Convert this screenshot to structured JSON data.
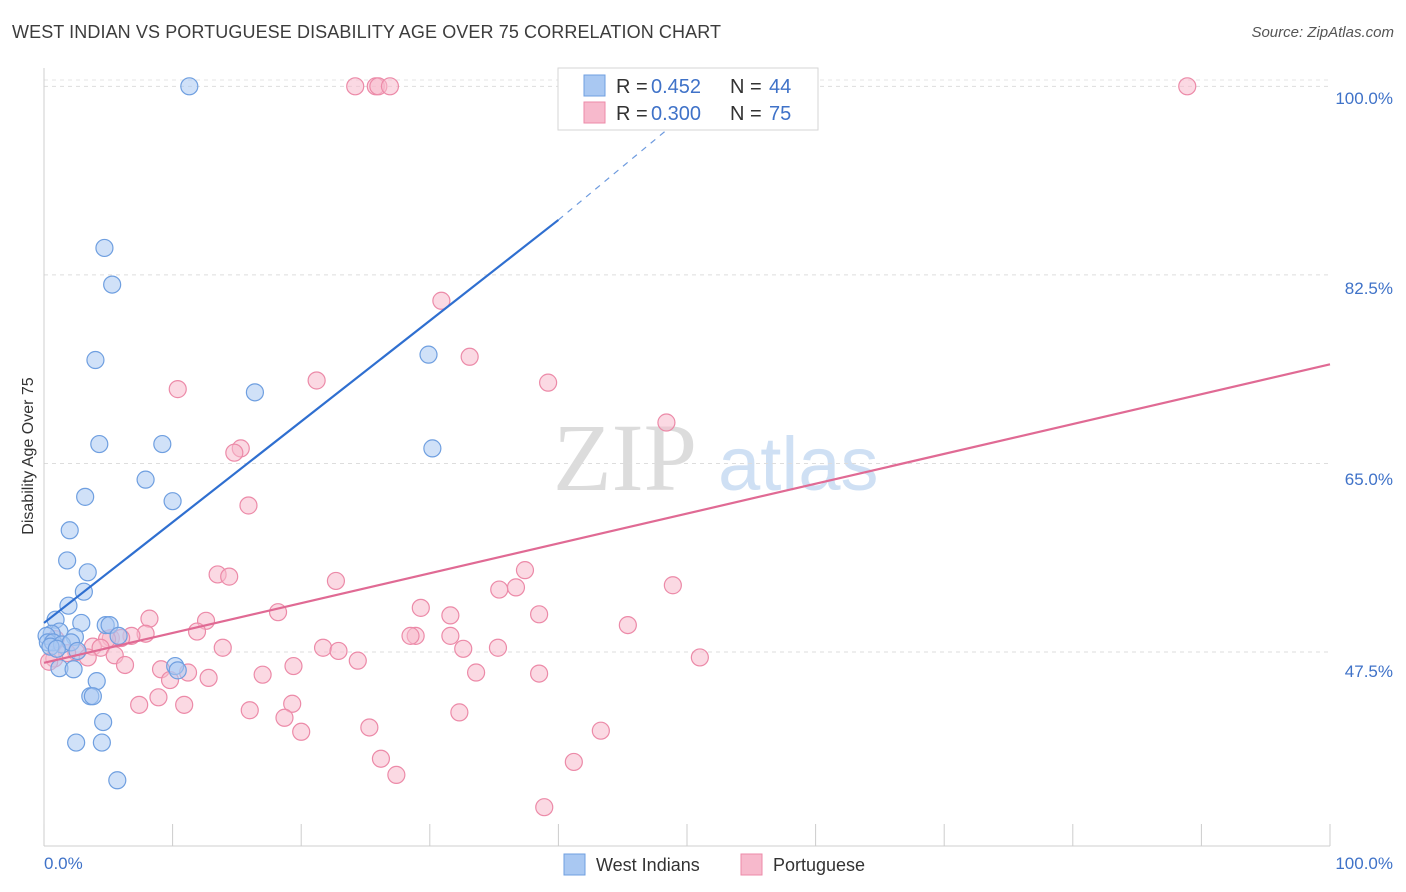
{
  "header": {
    "title": "WEST INDIAN VS PORTUGUESE DISABILITY AGE OVER 75 CORRELATION CHART",
    "source": "Source: ZipAtlas.com"
  },
  "watermark": {
    "zip": "ZIP",
    "atlas": "atlas"
  },
  "legend": {
    "r_label": "R =",
    "n_label": "N =",
    "entries": [
      {
        "r": "0.452",
        "n": "44"
      },
      {
        "r": "0.300",
        "n": "75"
      }
    ]
  },
  "colors": {
    "west_indians_fill": "#a9c8f2",
    "west_indians_stroke": "#6f9fe0",
    "west_indians_line": "#2f6fd0",
    "portuguese_fill": "#f7b9cc",
    "portuguese_stroke": "#ec8aa8",
    "portuguese_line": "#e06a94",
    "value_text": "#3f72c8"
  },
  "chart_data": {
    "type": "scatter",
    "title": "WEST INDIAN VS PORTUGUESE DISABILITY AGE OVER 75 CORRELATION CHART",
    "xlabel": "",
    "ylabel": "Disability Age Over 75",
    "xlim": [
      0,
      100
    ],
    "ylim": [
      29.5,
      101.7
    ],
    "x_tick_labels": [
      "0.0%",
      "100.0%"
    ],
    "y_ticks": [
      47.5,
      65.0,
      82.5,
      100.0
    ],
    "y_tick_labels": [
      "47.5%",
      "65.0%",
      "82.5%",
      "100.0%"
    ],
    "grid": true,
    "legend_position": "top-center",
    "series": [
      {
        "name": "West Indians",
        "r": 0.452,
        "n": 44,
        "trend": {
          "x": [
            0,
            40,
            52
          ],
          "y": [
            50.2,
            87.6,
            99.5
          ]
        },
        "points": [
          {
            "x": 11.3,
            "y": 100.0
          },
          {
            "x": 4.7,
            "y": 85.0
          },
          {
            "x": 5.3,
            "y": 81.6
          },
          {
            "x": 4.0,
            "y": 74.6
          },
          {
            "x": 16.4,
            "y": 71.6
          },
          {
            "x": 29.9,
            "y": 75.1
          },
          {
            "x": 4.3,
            "y": 66.8
          },
          {
            "x": 9.2,
            "y": 66.8
          },
          {
            "x": 30.2,
            "y": 66.4
          },
          {
            "x": 7.9,
            "y": 63.5
          },
          {
            "x": 3.2,
            "y": 61.9
          },
          {
            "x": 10.0,
            "y": 61.5
          },
          {
            "x": 2.0,
            "y": 58.8
          },
          {
            "x": 1.8,
            "y": 56.0
          },
          {
            "x": 3.4,
            "y": 54.9
          },
          {
            "x": 3.1,
            "y": 53.1
          },
          {
            "x": 1.9,
            "y": 51.8
          },
          {
            "x": 0.9,
            "y": 50.5
          },
          {
            "x": 2.9,
            "y": 50.2
          },
          {
            "x": 4.8,
            "y": 50.0
          },
          {
            "x": 5.1,
            "y": 50.0
          },
          {
            "x": 1.2,
            "y": 49.4
          },
          {
            "x": 0.6,
            "y": 49.2
          },
          {
            "x": 0.2,
            "y": 49.0
          },
          {
            "x": 2.4,
            "y": 48.9
          },
          {
            "x": 5.8,
            "y": 49.0
          },
          {
            "x": 0.3,
            "y": 48.4
          },
          {
            "x": 0.7,
            "y": 48.4
          },
          {
            "x": 1.4,
            "y": 48.2
          },
          {
            "x": 2.1,
            "y": 48.4
          },
          {
            "x": 0.5,
            "y": 48.0
          },
          {
            "x": 1.0,
            "y": 47.8
          },
          {
            "x": 2.6,
            "y": 47.6
          },
          {
            "x": 10.2,
            "y": 46.2
          },
          {
            "x": 10.4,
            "y": 45.8
          },
          {
            "x": 1.2,
            "y": 46.0
          },
          {
            "x": 2.3,
            "y": 45.9
          },
          {
            "x": 4.1,
            "y": 44.8
          },
          {
            "x": 3.6,
            "y": 43.4
          },
          {
            "x": 3.8,
            "y": 43.4
          },
          {
            "x": 4.6,
            "y": 41.0
          },
          {
            "x": 2.5,
            "y": 39.1
          },
          {
            "x": 4.5,
            "y": 39.1
          },
          {
            "x": 5.7,
            "y": 35.6
          }
        ]
      },
      {
        "name": "Portuguese",
        "r": 0.3,
        "n": 75,
        "trend": {
          "x": [
            0,
            100
          ],
          "y": [
            46.5,
            74.2
          ]
        },
        "points": [
          {
            "x": 24.2,
            "y": 100.0
          },
          {
            "x": 25.8,
            "y": 100.0
          },
          {
            "x": 26.0,
            "y": 100.0
          },
          {
            "x": 26.9,
            "y": 100.0
          },
          {
            "x": 88.9,
            "y": 100.0
          },
          {
            "x": 30.9,
            "y": 80.1
          },
          {
            "x": 33.1,
            "y": 74.9
          },
          {
            "x": 21.2,
            "y": 72.7
          },
          {
            "x": 39.2,
            "y": 72.5
          },
          {
            "x": 10.4,
            "y": 71.9
          },
          {
            "x": 48.4,
            "y": 68.8
          },
          {
            "x": 15.3,
            "y": 66.4
          },
          {
            "x": 14.8,
            "y": 66.0
          },
          {
            "x": 15.9,
            "y": 61.1
          },
          {
            "x": 13.5,
            "y": 54.7
          },
          {
            "x": 14.4,
            "y": 54.5
          },
          {
            "x": 37.4,
            "y": 55.1
          },
          {
            "x": 22.7,
            "y": 54.1
          },
          {
            "x": 36.7,
            "y": 53.5
          },
          {
            "x": 35.4,
            "y": 53.3
          },
          {
            "x": 48.9,
            "y": 53.7
          },
          {
            "x": 29.3,
            "y": 51.6
          },
          {
            "x": 18.2,
            "y": 51.2
          },
          {
            "x": 38.5,
            "y": 51.0
          },
          {
            "x": 31.6,
            "y": 50.9
          },
          {
            "x": 8.2,
            "y": 50.6
          },
          {
            "x": 12.6,
            "y": 50.4
          },
          {
            "x": 45.4,
            "y": 50.0
          },
          {
            "x": 11.9,
            "y": 49.4
          },
          {
            "x": 28.9,
            "y": 49.0
          },
          {
            "x": 31.6,
            "y": 49.0
          },
          {
            "x": 28.5,
            "y": 49.0
          },
          {
            "x": 7.9,
            "y": 49.2
          },
          {
            "x": 6.8,
            "y": 49.0
          },
          {
            "x": 5.2,
            "y": 48.8
          },
          {
            "x": 6.0,
            "y": 48.8
          },
          {
            "x": 4.9,
            "y": 48.7
          },
          {
            "x": 0.9,
            "y": 48.7
          },
          {
            "x": 13.9,
            "y": 47.9
          },
          {
            "x": 21.7,
            "y": 47.9
          },
          {
            "x": 22.9,
            "y": 47.6
          },
          {
            "x": 35.3,
            "y": 47.9
          },
          {
            "x": 32.6,
            "y": 47.8
          },
          {
            "x": 3.8,
            "y": 48.0
          },
          {
            "x": 4.4,
            "y": 47.9
          },
          {
            "x": 2.5,
            "y": 47.5
          },
          {
            "x": 1.8,
            "y": 47.4
          },
          {
            "x": 5.5,
            "y": 47.2
          },
          {
            "x": 3.4,
            "y": 47.0
          },
          {
            "x": 0.8,
            "y": 46.9
          },
          {
            "x": 0.4,
            "y": 46.6
          },
          {
            "x": 24.4,
            "y": 46.7
          },
          {
            "x": 51.0,
            "y": 47.0
          },
          {
            "x": 6.3,
            "y": 46.3
          },
          {
            "x": 19.4,
            "y": 46.2
          },
          {
            "x": 9.1,
            "y": 45.9
          },
          {
            "x": 11.2,
            "y": 45.6
          },
          {
            "x": 33.6,
            "y": 45.6
          },
          {
            "x": 38.5,
            "y": 45.5
          },
          {
            "x": 17.0,
            "y": 45.4
          },
          {
            "x": 9.8,
            "y": 44.9
          },
          {
            "x": 12.8,
            "y": 45.1
          },
          {
            "x": 8.9,
            "y": 43.3
          },
          {
            "x": 19.3,
            "y": 42.7
          },
          {
            "x": 7.4,
            "y": 42.6
          },
          {
            "x": 10.9,
            "y": 42.6
          },
          {
            "x": 16.0,
            "y": 42.1
          },
          {
            "x": 32.3,
            "y": 41.9
          },
          {
            "x": 18.7,
            "y": 41.4
          },
          {
            "x": 25.3,
            "y": 40.5
          },
          {
            "x": 20.0,
            "y": 40.1
          },
          {
            "x": 43.3,
            "y": 40.2
          },
          {
            "x": 26.2,
            "y": 37.6
          },
          {
            "x": 41.2,
            "y": 37.3
          },
          {
            "x": 27.4,
            "y": 36.1
          },
          {
            "x": 38.9,
            "y": 33.1
          }
        ]
      }
    ]
  }
}
